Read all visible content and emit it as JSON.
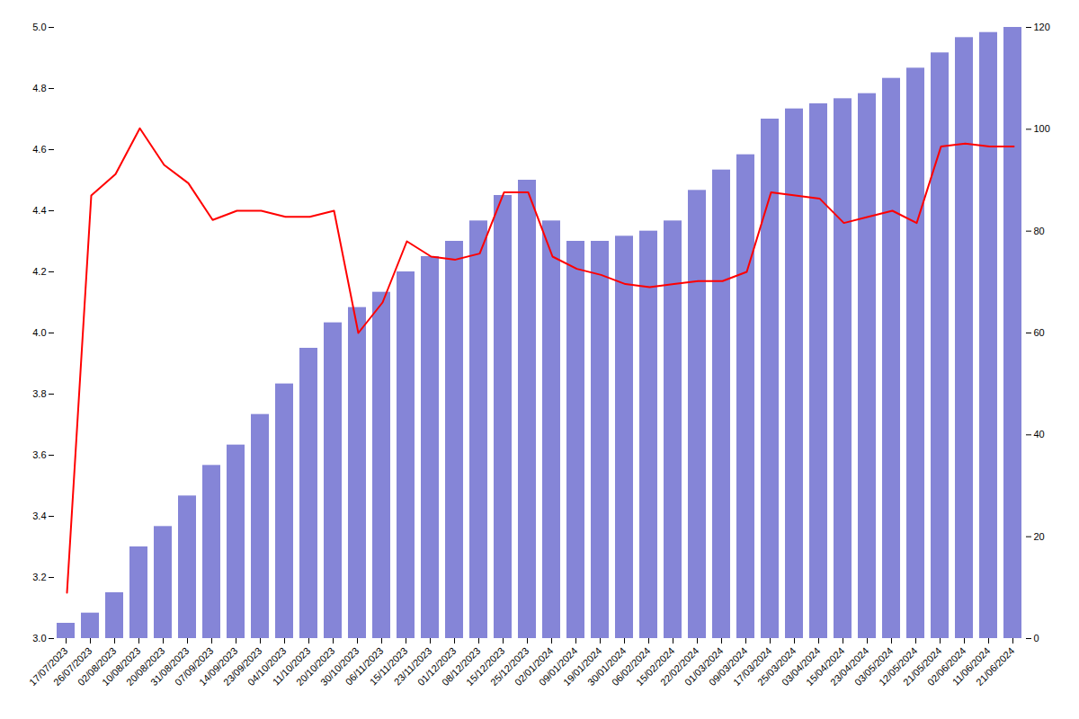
{
  "chart_data": {
    "type": "bar",
    "categories": [
      "17/07/2023",
      "26/07/2023",
      "02/08/2023",
      "10/08/2023",
      "20/08/2023",
      "31/08/2023",
      "07/09/2023",
      "14/09/2023",
      "23/09/2023",
      "04/10/2023",
      "11/10/2023",
      "20/10/2023",
      "30/10/2023",
      "06/11/2023",
      "15/11/2023",
      "23/11/2023",
      "01/12/2023",
      "08/12/2023",
      "15/12/2023",
      "25/12/2023",
      "02/01/2024",
      "09/01/2024",
      "19/01/2024",
      "30/01/2024",
      "06/02/2024",
      "15/02/2024",
      "22/02/2024",
      "01/03/2024",
      "09/03/2024",
      "17/03/2024",
      "25/03/2024",
      "03/04/2024",
      "15/04/2024",
      "23/04/2024",
      "03/05/2024",
      "12/05/2024",
      "21/05/2024",
      "02/06/2024",
      "11/06/2024",
      "21/06/2024"
    ],
    "series": [
      {
        "type": "bar",
        "axis": "y2",
        "color": "#7070d0",
        "values": [
          3,
          5,
          9,
          18,
          22,
          28,
          34,
          38,
          44,
          50,
          57,
          62,
          65,
          68,
          72,
          75,
          78,
          82,
          87,
          90,
          82,
          78,
          78,
          79,
          80,
          82,
          88,
          92,
          95,
          102,
          104,
          105,
          106,
          107,
          110,
          112,
          115,
          118,
          119,
          120
        ]
      },
      {
        "type": "line",
        "color": "#ff0000",
        "values": [
          3.15,
          4.45,
          4.52,
          4.67,
          4.55,
          4.49,
          4.37,
          4.4,
          4.4,
          4.38,
          4.38,
          4.4,
          4.0,
          4.1,
          4.3,
          4.25,
          4.24,
          4.26,
          4.46,
          4.46,
          4.25,
          4.21,
          4.19,
          4.16,
          4.15,
          4.16,
          4.17,
          4.17,
          4.2,
          4.46,
          4.45,
          4.44,
          4.36,
          4.38,
          4.4,
          4.36,
          4.61,
          4.62,
          4.61,
          4.61
        ]
      }
    ],
    "ylim": [
      3.0,
      5.0
    ],
    "yticks": [
      {
        "value": 3.0,
        "label": "3.0"
      },
      3.2,
      3.4,
      3.6,
      3.8,
      {
        "value": 4.0,
        "label": "4.0"
      },
      4.2,
      4.4,
      4.6,
      4.8,
      {
        "value": 5.0,
        "label": "5.0"
      }
    ],
    "y2lim": [
      0,
      120
    ],
    "y2ticks": [
      0,
      20,
      40,
      60,
      80,
      100,
      120
    ],
    "grid": false
  }
}
